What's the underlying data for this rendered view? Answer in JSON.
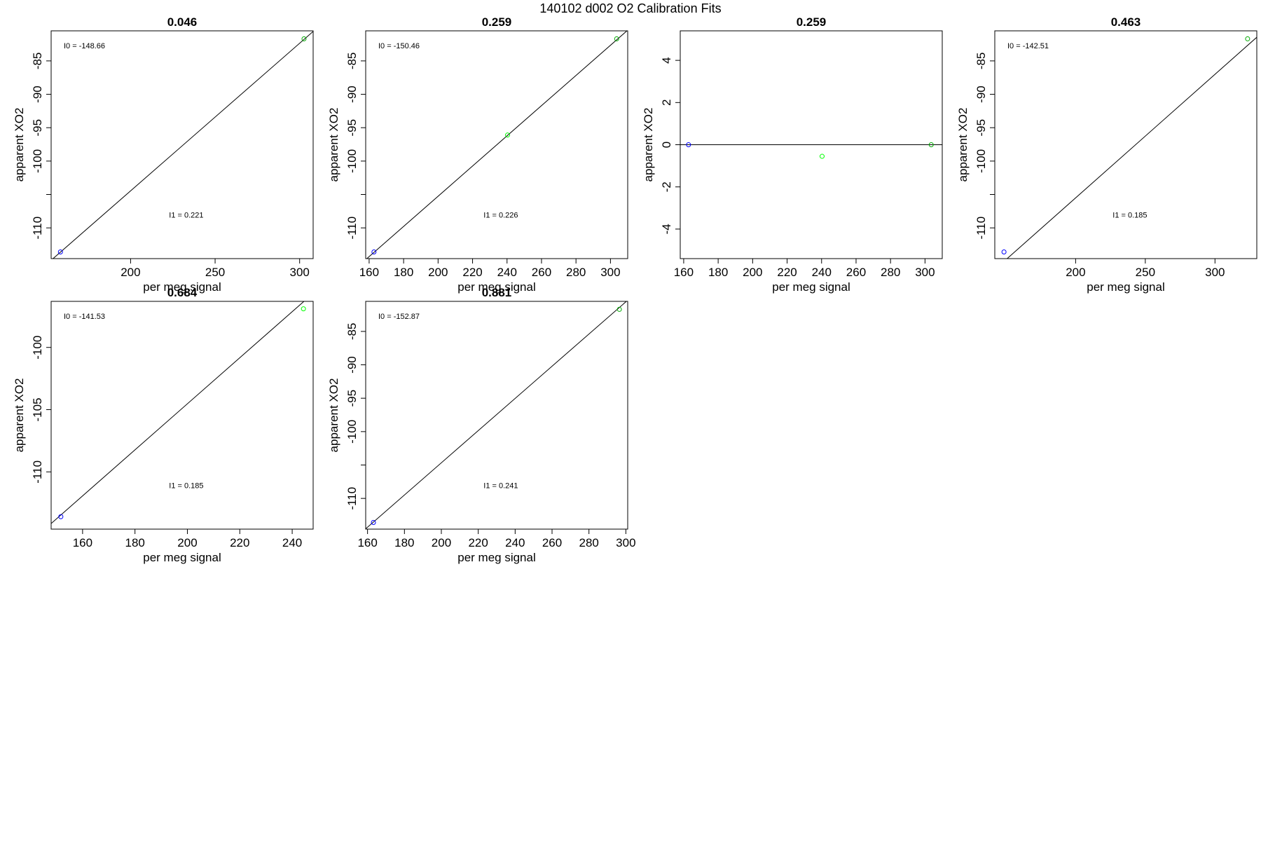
{
  "page_title": "140102   d002   O2 Calibration Fits",
  "colors": {
    "axis": "#000000",
    "fit_line": "#000000",
    "zero_line": "#000000",
    "point_low": "#0000ff",
    "point_mid": "#00ff00",
    "point_high": "#00aa00"
  },
  "chart_data": [
    {
      "type": "scatter",
      "title": "0.046",
      "xlabel": "per meg signal",
      "ylabel": "apparent XO2",
      "xlim": [
        153,
        308
      ],
      "ylim": [
        -114.6,
        -80.5
      ],
      "xticks": [
        200,
        250,
        300
      ],
      "yticks": [
        -110,
        -105,
        -100,
        -95,
        -90,
        -85
      ],
      "ytick_labels": [
        "-110",
        "",
        "-100",
        "-95",
        "-90",
        "-85"
      ],
      "points": [
        {
          "x": 158.5,
          "y": -113.6,
          "color": "point_low"
        },
        {
          "x": 302.6,
          "y": -81.7,
          "color": "point_high"
        }
      ],
      "fit_line": {
        "intercept": -148.66,
        "slope": 0.221
      },
      "annotations": {
        "intercept_label": "I0 =  -148.66",
        "slope_label": "I1 =  0.221"
      }
    },
    {
      "type": "scatter",
      "title": "0.259",
      "xlabel": "per meg signal",
      "ylabel": "apparent XO2",
      "xlim": [
        158,
        310
      ],
      "ylim": [
        -114.6,
        -80.5
      ],
      "xticks": [
        160,
        180,
        200,
        220,
        240,
        260,
        280,
        300
      ],
      "yticks": [
        -110,
        -105,
        -100,
        -95,
        -90,
        -85
      ],
      "ytick_labels": [
        "-110",
        "",
        "-100",
        "-95",
        "-90",
        "-85"
      ],
      "points": [
        {
          "x": 162.8,
          "y": -113.6,
          "color": "point_low"
        },
        {
          "x": 240.3,
          "y": -96.1,
          "color": "point_mid"
        },
        {
          "x": 303.6,
          "y": -81.7,
          "color": "point_high"
        }
      ],
      "fit_line": {
        "intercept": -150.46,
        "slope": 0.226
      },
      "annotations": {
        "intercept_label": "I0 =  -150.46",
        "slope_label": "I1 =  0.226"
      }
    },
    {
      "type": "scatter",
      "title": "0.259",
      "xlabel": "per meg signal",
      "ylabel": "apparent XO2",
      "xlim": [
        158,
        310
      ],
      "ylim": [
        -5.4,
        5.4
      ],
      "xticks": [
        160,
        180,
        200,
        220,
        240,
        260,
        280,
        300
      ],
      "yticks": [
        -4,
        -2,
        0,
        2,
        4
      ],
      "ytick_labels": [
        "-4",
        "-2",
        "0",
        "2",
        "4"
      ],
      "points": [
        {
          "x": 162.8,
          "y": 0.0,
          "color": "point_low"
        },
        {
          "x": 240.3,
          "y": -0.55,
          "color": "point_mid"
        },
        {
          "x": 303.6,
          "y": 0.0,
          "color": "point_high"
        }
      ],
      "hline": 0,
      "annotations": {}
    },
    {
      "type": "scatter",
      "title": "0.463",
      "xlabel": "per meg signal",
      "ylabel": "apparent XO2",
      "xlim": [
        142,
        330
      ],
      "ylim": [
        -114.6,
        -80.5
      ],
      "xticks": [
        200,
        250,
        300
      ],
      "yticks": [
        -110,
        -105,
        -100,
        -95,
        -90,
        -85
      ],
      "ytick_labels": [
        "-110",
        "",
        "-100",
        "-95",
        "-90",
        "-85"
      ],
      "points": [
        {
          "x": 148.6,
          "y": -113.6,
          "color": "point_low"
        },
        {
          "x": 323.4,
          "y": -81.7,
          "color": "point_high"
        }
      ],
      "fit_line": {
        "intercept": -142.51,
        "slope": 0.185
      },
      "annotations": {
        "intercept_label": "I0 =  -142.51",
        "slope_label": "I1 =  0.185"
      }
    },
    {
      "type": "scatter",
      "title": "0.684",
      "xlabel": "per meg signal",
      "ylabel": "apparent XO2",
      "xlim": [
        148,
        248
      ],
      "ylim": [
        -114.6,
        -96.3
      ],
      "xticks": [
        160,
        180,
        200,
        220,
        240
      ],
      "yticks": [
        -110,
        -105,
        -100
      ],
      "ytick_labels": [
        "-110",
        "-105",
        "-100"
      ],
      "points": [
        {
          "x": 151.7,
          "y": -113.6,
          "color": "point_low"
        },
        {
          "x": 244.3,
          "y": -96.9,
          "color": "point_mid"
        }
      ],
      "fit_line": {
        "intercept": -141.53,
        "slope": 0.185
      },
      "annotations": {
        "intercept_label": "I0 =  -141.53",
        "slope_label": "I1 =  0.185"
      }
    },
    {
      "type": "scatter",
      "title": "0.881",
      "xlabel": "per meg signal",
      "ylabel": "apparent XO2",
      "xlim": [
        159,
        301
      ],
      "ylim": [
        -114.6,
        -80.5
      ],
      "xticks": [
        160,
        180,
        200,
        220,
        240,
        260,
        280,
        300
      ],
      "yticks": [
        -110,
        -105,
        -100,
        -95,
        -90,
        -85
      ],
      "ytick_labels": [
        "-110",
        "",
        "-100",
        "-95",
        "-90",
        "-85"
      ],
      "points": [
        {
          "x": 163.2,
          "y": -113.6,
          "color": "point_low"
        },
        {
          "x": 296.5,
          "y": -81.7,
          "color": "point_high"
        }
      ],
      "fit_line": {
        "intercept": -152.87,
        "slope": 0.241
      },
      "annotations": {
        "intercept_label": "I0 =  -152.87",
        "slope_label": "I1 =  0.241"
      }
    }
  ]
}
